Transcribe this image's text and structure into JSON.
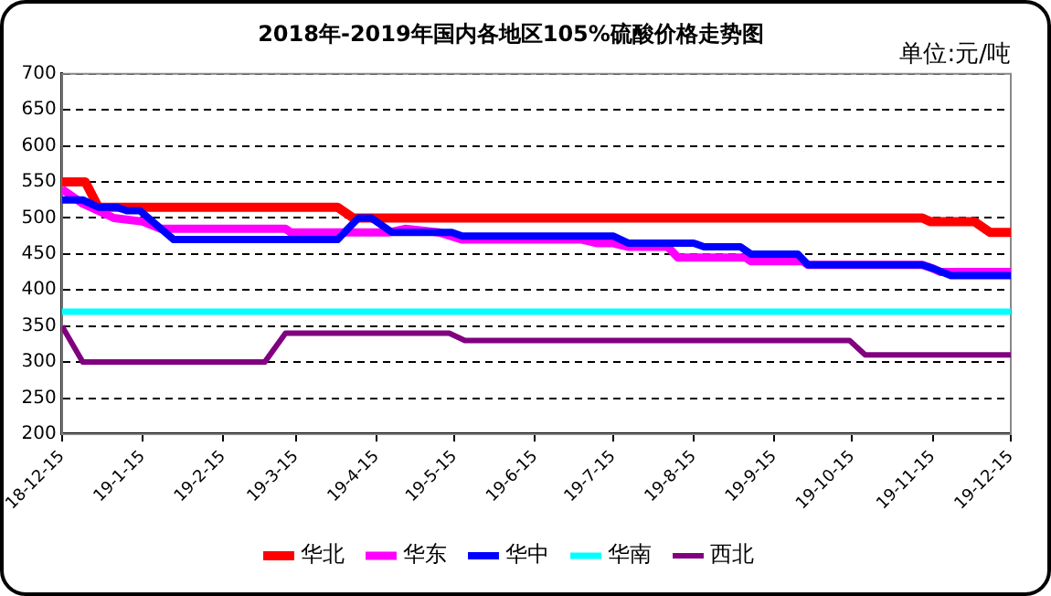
{
  "chart_data": {
    "type": "line",
    "title": "2018年-2019年国内各地区105%硫酸价格走势图",
    "annotations": [
      "单位:元/吨"
    ],
    "xlim": [
      "2018-12-15",
      "2019-12-15"
    ],
    "xticks": [
      {
        "value": "2018-12-15",
        "label": "18-12-15"
      },
      {
        "value": "2019-01-15",
        "label": "19-1-15"
      },
      {
        "value": "2019-02-15",
        "label": "19-2-15"
      },
      {
        "value": "2019-03-15",
        "label": "19-3-15"
      },
      {
        "value": "2019-04-15",
        "label": "19-4-15"
      },
      {
        "value": "2019-05-15",
        "label": "19-5-15"
      },
      {
        "value": "2019-06-15",
        "label": "19-6-15"
      },
      {
        "value": "2019-07-15",
        "label": "19-7-15"
      },
      {
        "value": "2019-08-15",
        "label": "19-8-15"
      },
      {
        "value": "2019-09-15",
        "label": "19-9-15"
      },
      {
        "value": "2019-10-15",
        "label": "19-10-15"
      },
      {
        "value": "2019-11-15",
        "label": "19-11-15"
      },
      {
        "value": "2019-12-15",
        "label": "19-12-15"
      }
    ],
    "ylim": [
      200,
      700
    ],
    "yticks": [
      200,
      250,
      300,
      350,
      400,
      450,
      500,
      550,
      600,
      650,
      700
    ],
    "grid": "y",
    "legend": "bottom",
    "marker": "none",
    "line_style": "solid",
    "series": [
      {
        "name": "华北",
        "color": "#ff0000",
        "x": [
          "2018-12-15",
          "2018-12-24",
          "2018-12-29",
          "2019-03-31",
          "2019-04-06",
          "2019-11-11",
          "2019-11-14",
          "2019-12-01",
          "2019-12-07",
          "2019-12-15"
        ],
        "values": [
          550,
          550,
          515,
          515,
          500,
          500,
          495,
          495,
          480,
          480
        ]
      },
      {
        "name": "华东",
        "color": "#ff00ff",
        "x": [
          "2018-12-15",
          "2018-12-23",
          "2019-01-04",
          "2019-01-15",
          "2019-01-22",
          "2019-03-11",
          "2019-03-13",
          "2019-04-20",
          "2019-04-26",
          "2019-05-09",
          "2019-05-18",
          "2019-07-03",
          "2019-07-09",
          "2019-07-15",
          "2019-07-21",
          "2019-08-05",
          "2019-08-09",
          "2019-09-04",
          "2019-09-06",
          "2019-09-26",
          "2019-09-28",
          "2019-11-11",
          "2019-11-15",
          "2019-11-18",
          "2019-12-15"
        ],
        "values": [
          540,
          520,
          500,
          495,
          485,
          485,
          480,
          480,
          485,
          480,
          470,
          470,
          465,
          465,
          460,
          460,
          445,
          445,
          440,
          440,
          435,
          435,
          430,
          425,
          425
        ]
      },
      {
        "name": "华中",
        "color": "#0000ff",
        "x": [
          "2018-12-15",
          "2018-12-23",
          "2018-12-29",
          "2019-01-05",
          "2019-01-09",
          "2019-01-14",
          "2019-01-27",
          "2019-03-31",
          "2019-04-08",
          "2019-04-13",
          "2019-04-21",
          "2019-05-14",
          "2019-05-18",
          "2019-07-15",
          "2019-07-21",
          "2019-08-15",
          "2019-08-19",
          "2019-09-02",
          "2019-09-06",
          "2019-09-24",
          "2019-09-28",
          "2019-11-11",
          "2019-11-15",
          "2019-11-22",
          "2019-12-15"
        ],
        "values": [
          525,
          525,
          515,
          515,
          510,
          510,
          470,
          470,
          500,
          500,
          480,
          480,
          475,
          475,
          465,
          465,
          460,
          460,
          450,
          450,
          435,
          435,
          430,
          420,
          420
        ]
      },
      {
        "name": "华南",
        "color": "#00ffff",
        "x": [
          "2018-12-15",
          "2019-12-15"
        ],
        "values": [
          370,
          370
        ]
      },
      {
        "name": "西北",
        "color": "#800080",
        "x": [
          "2018-12-15",
          "2018-12-23",
          "2019-03-03",
          "2019-03-11",
          "2019-05-13",
          "2019-05-19",
          "2019-10-14",
          "2019-10-20",
          "2019-12-15"
        ],
        "values": [
          350,
          300,
          300,
          340,
          340,
          330,
          330,
          310,
          310
        ]
      }
    ]
  }
}
